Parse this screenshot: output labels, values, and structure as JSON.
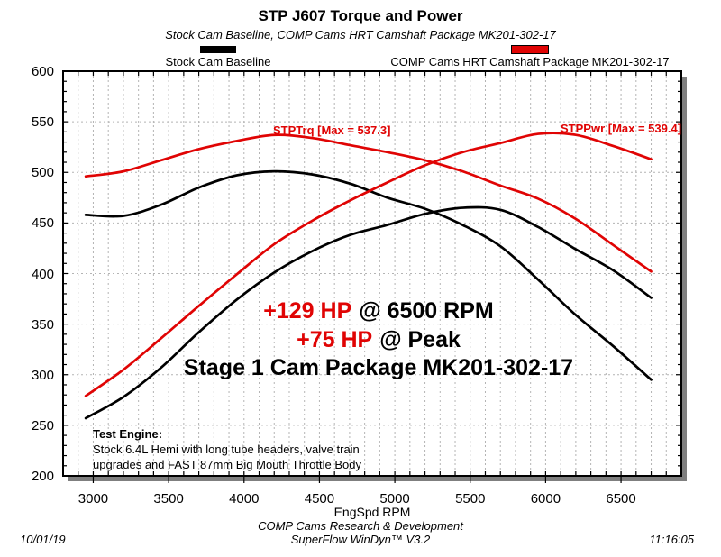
{
  "header": {
    "title": "STP J607 Torque and Power",
    "subtitle": "Stock Cam Baseline, COMP Cams HRT Camshaft Package MK201-302-17"
  },
  "legend": [
    {
      "label": "Stock Cam Baseline",
      "color": "#000000"
    },
    {
      "label": "COMP Cams HRT Camshaft Package MK201-302-17",
      "color": "#e00404"
    }
  ],
  "colors": {
    "stock_curve": "#000000",
    "comp_curve": "#e00404",
    "annotation_red": "#e00404",
    "grid": "#b4b4b4",
    "frame": "#000000",
    "shadow": "#7f7f7f",
    "background": "#ffffff"
  },
  "annotations": {
    "trq_max_label": "STPTrq [Max = 537.3]",
    "pwr_max_label": "STPPwr [Max = 539.4]",
    "gain1_red": "+129 HP",
    "gain1_black": "@ 6500 RPM",
    "gain2_red": "+75 HP",
    "gain2_black": "@ Peak",
    "stage_line": "Stage 1 Cam Package MK201-302-17",
    "engine_title": "Test Engine:",
    "engine_line1": "Stock 6.4L Hemi with long tube headers, valve train",
    "engine_line2": "upgrades and FAST 87mm Big Mouth Throttle Body"
  },
  "footer": {
    "date": "10/01/19",
    "center_line1": "COMP Cams Research & Development",
    "center_line2": "SuperFlow WinDyn™ V3.2",
    "time": "11:16:05"
  },
  "chart_data": {
    "type": "line",
    "title": "STP J607 Torque and Power",
    "xlabel": "EngSpd RPM",
    "ylabel": "",
    "x_range": [
      2800,
      6900
    ],
    "y_range": [
      200,
      600
    ],
    "x_ticks": [
      3000,
      3500,
      4000,
      4500,
      5000,
      5500,
      6000,
      6500
    ],
    "y_ticks": [
      200,
      250,
      300,
      350,
      400,
      450,
      500,
      550,
      600
    ],
    "grid": "dashed, vertical every 100 RPM, horizontal every 50",
    "legend_position": "top",
    "x": [
      2950,
      3200,
      3450,
      3700,
      3950,
      4200,
      4450,
      4700,
      4950,
      5200,
      5450,
      5700,
      5950,
      6200,
      6450,
      6700
    ],
    "series": [
      {
        "name": "STPTrq Stock Cam Baseline",
        "color": "#000000",
        "values": [
          458,
          457,
          468,
          485,
          497,
          501,
          498,
          489,
          475,
          464,
          448,
          427,
          394,
          359,
          328,
          295
        ]
      },
      {
        "name": "STPPwr Stock Cam Baseline",
        "color": "#000000",
        "values": [
          257,
          278,
          307,
          342,
          374,
          401,
          422,
          438,
          448,
          459,
          465,
          463,
          446,
          424,
          403,
          376
        ]
      },
      {
        "name": "STPTrq COMP Cams HRT Camshaft Package MK201-302-17",
        "color": "#e00404",
        "max": 537.3,
        "values": [
          496,
          501,
          512,
          523,
          531,
          537,
          534,
          527,
          520,
          512,
          501,
          487,
          474,
          454,
          428,
          402
        ]
      },
      {
        "name": "STPPwr COMP Cams HRT Camshaft Package MK201-302-17",
        "color": "#e00404",
        "max": 539.4,
        "values": [
          279,
          305,
          336,
          368,
          399,
          429,
          452,
          472,
          490,
          507,
          520,
          529,
          538,
          537,
          526,
          513
        ]
      }
    ]
  }
}
